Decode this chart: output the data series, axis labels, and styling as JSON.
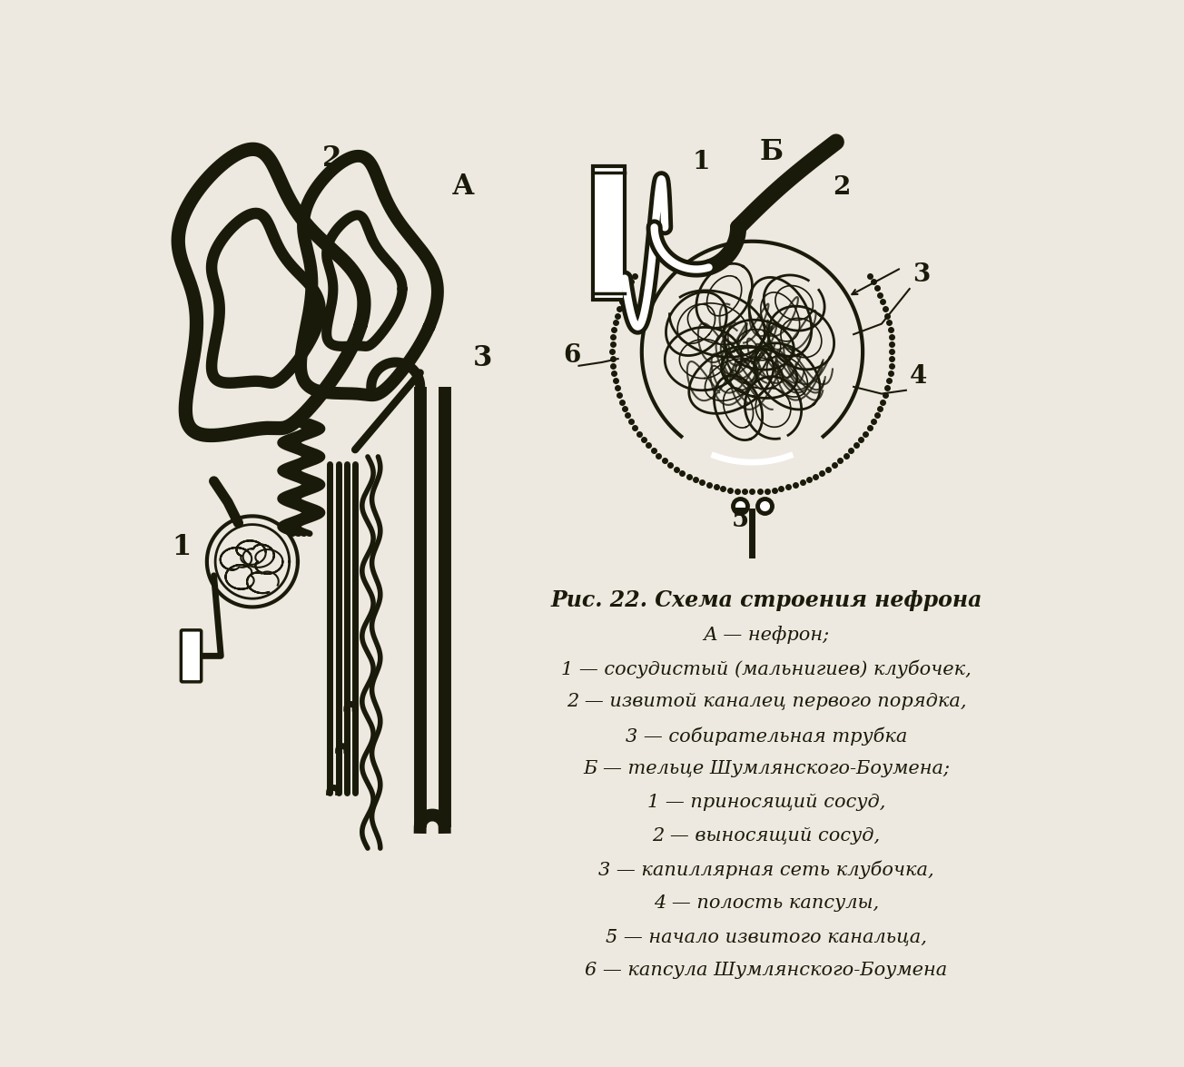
{
  "bg_color": "#ede8e0",
  "line_color": "#1a1a0a",
  "text_color": "#1a1a0a",
  "title": "Рис. 22. Схема строения нефрона",
  "caption_lines": [
    "А — нефрон;",
    "1 — сосудистый (мальнигиев) клубочек,",
    "2 — извитой каналец первого порядка,",
    "3 — собирательная трубка",
    "Б — тельце Шумлянского-Боумена;",
    "1 — приносящий сосуд,",
    "2 — выносящий сосуд,",
    "3 — капиллярная сеть клубочка,",
    "4 — полость капсулы,",
    "5 — начало извитого канальца,",
    "6 — капсула Шумлянского-Боумена"
  ]
}
